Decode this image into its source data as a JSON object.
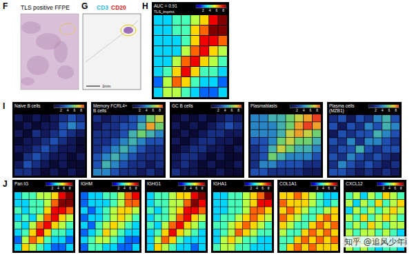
{
  "figure": {
    "F": {
      "letter": "F",
      "title": "TLS positive FFPE"
    },
    "G": {
      "letter": "G",
      "stains": [
        {
          "text": "CD3",
          "color": "#2bb5e0"
        },
        {
          "text": "CD20",
          "color": "#e0201b"
        }
      ],
      "scale_bar": "1mm"
    },
    "watermark": "知乎 @追风少年i"
  },
  "chart_data": [
    {
      "type": "heatmap",
      "panel": "H",
      "title": "AUC = 0.91",
      "colorbar": {
        "title": "TLS_imprint",
        "range": [
          0,
          9
        ],
        "ticks": [
          2,
          4,
          6,
          8
        ]
      },
      "colors": [
        "#00008f",
        "#0000ff",
        "#0080ff",
        "#00ffff",
        "#80ff80",
        "#ffff00",
        "#ff8000",
        "#ff0000",
        "#800000"
      ],
      "values": [
        [
          3,
          3,
          4,
          4,
          5,
          6,
          8,
          9
        ],
        [
          3,
          3,
          4,
          4,
          6,
          7,
          9,
          9
        ],
        [
          3,
          3,
          3,
          4,
          6,
          8,
          8,
          7
        ],
        [
          3,
          3,
          3,
          5,
          7,
          8,
          6,
          5
        ],
        [
          3,
          3,
          5,
          7,
          8,
          6,
          5,
          4
        ],
        [
          3,
          4,
          6,
          8,
          6,
          4,
          4,
          3
        ],
        [
          2,
          5,
          7,
          6,
          4,
          3,
          3,
          2
        ],
        [
          3,
          5,
          5,
          4,
          3,
          2,
          2,
          3
        ]
      ]
    },
    {
      "type": "heatmap",
      "panel": "I",
      "title": "Naive B cells",
      "colorbar": {
        "range": [
          0,
          9
        ],
        "ticks": [
          2,
          4,
          6,
          8
        ]
      },
      "colors": [
        "#0a0a35",
        "#14206e",
        "#1f4fb0",
        "#2fa0d0",
        "#70d070",
        "#f0d030",
        "#e84020"
      ],
      "values": [
        [
          1,
          0,
          1,
          0,
          1,
          2,
          3,
          2
        ],
        [
          0,
          1,
          0,
          1,
          1,
          3,
          4,
          3
        ],
        [
          1,
          0,
          2,
          1,
          2,
          3,
          2,
          1
        ],
        [
          0,
          1,
          1,
          2,
          3,
          2,
          1,
          0
        ],
        [
          1,
          1,
          2,
          3,
          2,
          1,
          1,
          0
        ],
        [
          0,
          2,
          3,
          2,
          1,
          1,
          0,
          1
        ],
        [
          1,
          3,
          2,
          1,
          0,
          1,
          0,
          0
        ],
        [
          2,
          2,
          1,
          0,
          1,
          0,
          1,
          0
        ]
      ]
    },
    {
      "type": "heatmap",
      "title": "Memory FCRL4+ B cells",
      "colorbar": {
        "range": [
          0,
          9
        ],
        "ticks": [
          2,
          4,
          6,
          8
        ]
      },
      "colors": [
        "#0a0a35",
        "#14206e",
        "#1f4fb0",
        "#2fa0d0",
        "#70d070",
        "#f0d030",
        "#e84020"
      ],
      "values": [
        [
          2,
          1,
          2,
          2,
          3,
          4,
          6,
          7
        ],
        [
          1,
          2,
          2,
          3,
          3,
          5,
          8,
          6
        ],
        [
          2,
          2,
          2,
          3,
          5,
          6,
          5,
          4
        ],
        [
          2,
          2,
          3,
          4,
          5,
          4,
          3,
          3
        ],
        [
          2,
          3,
          4,
          5,
          4,
          3,
          2,
          2
        ],
        [
          3,
          4,
          5,
          4,
          3,
          2,
          2,
          2
        ],
        [
          3,
          5,
          4,
          3,
          2,
          2,
          1,
          2
        ],
        [
          4,
          4,
          3,
          2,
          2,
          1,
          2,
          1
        ]
      ]
    },
    {
      "type": "heatmap",
      "title": "GC B cells",
      "colorbar": {
        "range": [
          0,
          9
        ],
        "ticks": [
          2,
          4,
          6,
          8
        ]
      },
      "colors": [
        "#0a0a35",
        "#14206e",
        "#1f4fb0",
        "#2fa0d0",
        "#70d070",
        "#f0d030",
        "#e84020"
      ],
      "values": [
        [
          0,
          1,
          0,
          1,
          0,
          1,
          2,
          1
        ],
        [
          1,
          0,
          1,
          0,
          1,
          2,
          3,
          2
        ],
        [
          0,
          1,
          0,
          1,
          2,
          2,
          1,
          1
        ],
        [
          1,
          0,
          1,
          2,
          2,
          1,
          1,
          0
        ],
        [
          0,
          1,
          2,
          2,
          1,
          1,
          0,
          1
        ],
        [
          1,
          2,
          2,
          1,
          0,
          1,
          0,
          0
        ],
        [
          1,
          2,
          1,
          0,
          1,
          0,
          0,
          1
        ],
        [
          2,
          1,
          1,
          0,
          0,
          1,
          0,
          0
        ]
      ]
    },
    {
      "type": "heatmap",
      "title": "Plasmablasts",
      "colorbar": {
        "range": [
          0,
          9
        ],
        "ticks": [
          2,
          4,
          6,
          8
        ]
      },
      "colors": [
        "#0a0a35",
        "#14206e",
        "#1f4fb0",
        "#2fa0d0",
        "#70d070",
        "#f0d030",
        "#e84020"
      ],
      "values": [
        [
          4,
          4,
          5,
          5,
          6,
          7,
          8,
          9
        ],
        [
          4,
          4,
          4,
          5,
          6,
          8,
          9,
          8
        ],
        [
          4,
          4,
          4,
          5,
          7,
          8,
          7,
          6
        ],
        [
          3,
          3,
          4,
          6,
          7,
          6,
          6,
          5
        ],
        [
          2,
          3,
          5,
          7,
          6,
          5,
          5,
          4
        ],
        [
          2,
          3,
          6,
          5,
          4,
          4,
          4,
          3
        ],
        [
          2,
          4,
          4,
          3,
          3,
          3,
          2,
          2
        ],
        [
          3,
          3,
          2,
          2,
          2,
          2,
          1,
          1
        ]
      ]
    },
    {
      "type": "heatmap",
      "title": "Plasma cells (MZB1)",
      "colorbar": {
        "range": [
          0,
          9
        ],
        "ticks": [
          2,
          4,
          6,
          8
        ]
      },
      "colors": [
        "#0a0a35",
        "#14206e",
        "#1f4fb0",
        "#2fa0d0",
        "#70d070",
        "#f0d030",
        "#e84020"
      ],
      "values": [
        [
          2,
          3,
          1,
          3,
          2,
          4,
          5,
          3
        ],
        [
          3,
          1,
          3,
          2,
          4,
          3,
          5,
          4
        ],
        [
          1,
          3,
          2,
          3,
          3,
          5,
          4,
          3
        ],
        [
          3,
          2,
          4,
          2,
          4,
          4,
          3,
          2
        ],
        [
          2,
          3,
          3,
          5,
          3,
          2,
          3,
          3
        ],
        [
          3,
          2,
          4,
          3,
          2,
          3,
          2,
          1
        ],
        [
          2,
          4,
          3,
          2,
          3,
          2,
          1,
          2
        ],
        [
          3,
          3,
          2,
          1,
          2,
          1,
          2,
          1
        ]
      ]
    },
    {
      "type": "heatmap",
      "panel": "J",
      "title": "Pan IG",
      "colorbar": {
        "range": [
          0,
          9
        ],
        "ticks": [
          2,
          4,
          6,
          8
        ]
      },
      "colors": [
        "#00008f",
        "#0000ff",
        "#0080ff",
        "#00ffff",
        "#80ff80",
        "#ffff00",
        "#ff8000",
        "#ff0000",
        "#800000"
      ],
      "values": [
        [
          3,
          4,
          4,
          5,
          5,
          6,
          8,
          9
        ],
        [
          3,
          3,
          4,
          4,
          5,
          7,
          9,
          9
        ],
        [
          4,
          3,
          4,
          4,
          6,
          8,
          8,
          7
        ],
        [
          3,
          4,
          3,
          5,
          7,
          8,
          6,
          5
        ],
        [
          4,
          3,
          5,
          7,
          8,
          6,
          5,
          4
        ],
        [
          3,
          4,
          6,
          8,
          6,
          4,
          4,
          3
        ],
        [
          2,
          5,
          7,
          6,
          4,
          3,
          3,
          2
        ],
        [
          3,
          6,
          5,
          4,
          3,
          2,
          2,
          3
        ]
      ]
    },
    {
      "type": "heatmap",
      "title": "IGHM",
      "colorbar": {
        "range": [
          0,
          9
        ],
        "ticks": [
          2,
          4,
          6,
          8
        ]
      },
      "colors": [
        "#00008f",
        "#0000ff",
        "#0080ff",
        "#00ffff",
        "#80ff80",
        "#ffff00",
        "#ff8000",
        "#ff0000",
        "#800000"
      ],
      "values": [
        [
          2,
          3,
          3,
          4,
          4,
          5,
          7,
          8
        ],
        [
          2,
          3,
          3,
          3,
          4,
          5,
          7,
          7
        ],
        [
          3,
          2,
          3,
          4,
          5,
          6,
          6,
          5
        ],
        [
          2,
          3,
          3,
          4,
          5,
          6,
          5,
          4
        ],
        [
          3,
          2,
          4,
          5,
          6,
          5,
          4,
          3
        ],
        [
          2,
          3,
          4,
          6,
          5,
          4,
          3,
          3
        ],
        [
          3,
          4,
          5,
          5,
          4,
          3,
          2,
          2
        ],
        [
          2,
          4,
          4,
          3,
          3,
          2,
          2,
          3
        ]
      ]
    },
    {
      "type": "heatmap",
      "title": "IGHG1",
      "colorbar": {
        "range": [
          0,
          9
        ],
        "ticks": [
          2,
          4,
          6,
          8
        ]
      },
      "colors": [
        "#00008f",
        "#0000ff",
        "#0080ff",
        "#00ffff",
        "#80ff80",
        "#ffff00",
        "#ff8000",
        "#ff0000",
        "#800000"
      ],
      "values": [
        [
          3,
          4,
          4,
          5,
          6,
          6,
          8,
          9
        ],
        [
          3,
          4,
          4,
          5,
          5,
          7,
          9,
          8
        ],
        [
          4,
          3,
          4,
          5,
          6,
          8,
          8,
          7
        ],
        [
          3,
          4,
          4,
          5,
          7,
          8,
          6,
          5
        ],
        [
          4,
          3,
          5,
          7,
          8,
          6,
          5,
          4
        ],
        [
          3,
          4,
          6,
          8,
          6,
          5,
          4,
          3
        ],
        [
          3,
          5,
          7,
          6,
          4,
          3,
          3,
          3
        ],
        [
          3,
          6,
          5,
          4,
          3,
          3,
          2,
          3
        ]
      ]
    },
    {
      "type": "heatmap",
      "title": "IGHA1",
      "colorbar": {
        "range": [
          0,
          9
        ],
        "ticks": [
          2,
          4,
          6,
          8
        ]
      },
      "colors": [
        "#00008f",
        "#0000ff",
        "#0080ff",
        "#00ffff",
        "#80ff80",
        "#ffff00",
        "#ff8000",
        "#ff0000",
        "#800000"
      ],
      "values": [
        [
          3,
          3,
          4,
          4,
          5,
          6,
          7,
          9
        ],
        [
          3,
          3,
          4,
          4,
          5,
          6,
          8,
          8
        ],
        [
          3,
          3,
          4,
          4,
          5,
          7,
          7,
          6
        ],
        [
          3,
          4,
          4,
          5,
          6,
          7,
          6,
          5
        ],
        [
          4,
          4,
          5,
          6,
          7,
          6,
          5,
          4
        ],
        [
          3,
          4,
          5,
          7,
          6,
          5,
          4,
          4
        ],
        [
          3,
          5,
          6,
          5,
          4,
          4,
          3,
          3
        ],
        [
          4,
          5,
          5,
          4,
          4,
          3,
          3,
          3
        ]
      ]
    },
    {
      "type": "heatmap",
      "title": "COL1A1",
      "colorbar": {
        "range": [
          0,
          9
        ],
        "ticks": [
          2,
          4,
          6,
          8
        ]
      },
      "colors": [
        "#00008f",
        "#0000ff",
        "#0080ff",
        "#00ffff",
        "#80ff80",
        "#ffff00",
        "#ff8000",
        "#ff0000",
        "#800000"
      ],
      "values": [
        [
          6,
          6,
          7,
          6,
          5,
          4,
          3,
          3
        ],
        [
          7,
          6,
          6,
          6,
          5,
          4,
          3,
          4
        ],
        [
          6,
          7,
          6,
          5,
          4,
          4,
          5,
          6
        ],
        [
          7,
          6,
          5,
          4,
          4,
          6,
          7,
          6
        ],
        [
          6,
          5,
          4,
          4,
          6,
          7,
          6,
          7
        ],
        [
          5,
          4,
          4,
          6,
          7,
          6,
          7,
          6
        ],
        [
          4,
          4,
          6,
          7,
          6,
          7,
          6,
          7
        ],
        [
          4,
          6,
          7,
          6,
          7,
          6,
          6,
          6
        ]
      ]
    },
    {
      "type": "heatmap",
      "title": "CXCL12",
      "colorbar": {
        "range": [
          0,
          9
        ],
        "ticks": [
          2,
          4,
          6,
          8
        ]
      },
      "colors": [
        "#00008f",
        "#0000ff",
        "#0080ff",
        "#00ffff",
        "#80ff80",
        "#ffff00",
        "#ff8000",
        "#ff0000",
        "#800000"
      ],
      "values": [
        [
          4,
          5,
          3,
          5,
          4,
          6,
          5,
          4
        ],
        [
          5,
          3,
          5,
          4,
          6,
          4,
          5,
          6
        ],
        [
          3,
          5,
          4,
          5,
          4,
          5,
          6,
          5
        ],
        [
          5,
          4,
          6,
          4,
          5,
          6,
          5,
          4
        ],
        [
          4,
          5,
          4,
          6,
          5,
          4,
          5,
          5
        ],
        [
          5,
          4,
          5,
          5,
          4,
          5,
          4,
          3
        ],
        [
          4,
          6,
          4,
          5,
          5,
          4,
          3,
          4
        ],
        [
          5,
          4,
          5,
          4,
          3,
          4,
          4,
          3
        ]
      ]
    }
  ]
}
